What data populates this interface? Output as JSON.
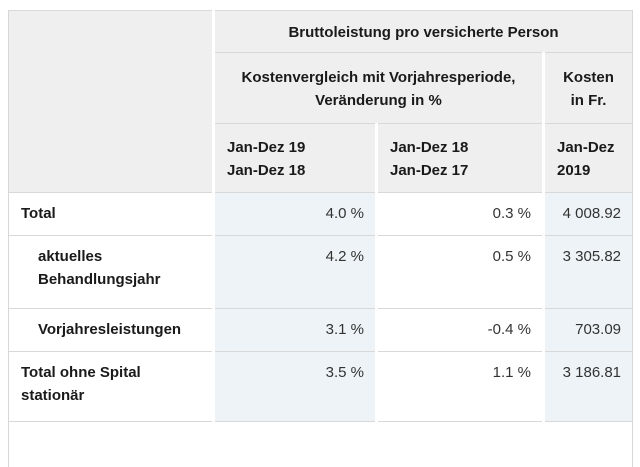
{
  "table": {
    "top_header": "Bruttoleistung pro versicherte Person",
    "group_headers": {
      "comparison": "Kostenvergleich mit Vorjahresperiode, Veränderung in %",
      "costs_line1": "Kosten",
      "costs_line2": "in Fr."
    },
    "column_headers": [
      {
        "line1": "Jan-Dez 19",
        "line2": "Jan-Dez 18"
      },
      {
        "line1": "Jan-Dez 18",
        "line2": "Jan-Dez 17"
      },
      {
        "line1": "Jan-Dez",
        "line2": "2019"
      }
    ],
    "rows": [
      {
        "label": "Total",
        "change_19_18": "4.0 %",
        "change_18_17": "0.3 %",
        "cost_2019": "4 008.92"
      },
      {
        "label": "aktuelles Behandlungsjahr",
        "change_19_18": "4.2 %",
        "change_18_17": "0.5 %",
        "cost_2019": "3 305.82"
      },
      {
        "label": "Vorjahresleistungen",
        "change_19_18": "3.1 %",
        "change_18_17": "-0.4 %",
        "cost_2019": "703.09"
      },
      {
        "label": "Total ohne Spital stationär",
        "change_19_18": "3.5 %",
        "change_18_17": "1.1 %",
        "cost_2019": "3 186.81"
      }
    ],
    "colors": {
      "header_bg": "#efefef",
      "highlight_bg": "#edf3f6",
      "border": "#d8d8d8"
    }
  }
}
